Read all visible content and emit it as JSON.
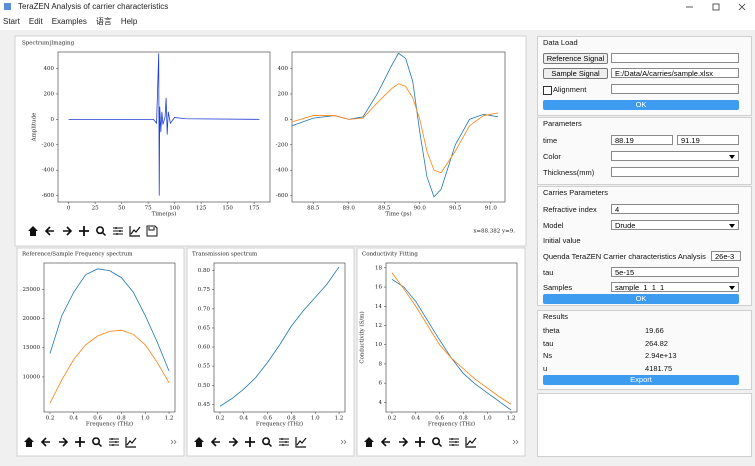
{
  "window": {
    "title": "TeraZEN Analysis of carrier characteristics"
  },
  "menu": [
    "Start",
    "Edit",
    "Examples",
    "语言",
    "Help"
  ],
  "spectrum": {
    "title": "Spectrum|Imaging",
    "coords": "x=88.382 y=9.",
    "time_plot": {
      "xlabel": "Time(ps)",
      "ylabel": "Amplitude",
      "xlim": [
        -10,
        190
      ],
      "ylim": [
        -650,
        530
      ],
      "xticks": [
        0,
        25,
        50,
        75,
        100,
        125,
        150,
        175
      ],
      "yticks": [
        -600,
        -400,
        -200,
        0,
        200,
        400
      ],
      "series": [
        {
          "color": "#1f3fd6",
          "x": [
            0,
            80,
            83,
            85,
            85.5,
            86,
            87,
            88,
            89,
            91,
            92,
            93,
            94,
            96,
            100,
            110,
            180
          ],
          "values": [
            0,
            0,
            -30,
            520,
            -600,
            100,
            -100,
            60,
            -40,
            20,
            170,
            -120,
            60,
            -30,
            15,
            5,
            0
          ]
        }
      ]
    },
    "zoom_plot": {
      "xlabel": "Time (ps)",
      "xlim": [
        88.2,
        91.2
      ],
      "ylim": [
        -650,
        530
      ],
      "xticks": [
        88.5,
        {
          "value": 89,
          "label": "89.0"
        },
        89.5,
        {
          "value": 90,
          "label": "90.0"
        },
        90.5,
        {
          "value": 91,
          "label": "91.0"
        }
      ],
      "yticks": [
        -600,
        -400,
        -200,
        0,
        200,
        400
      ],
      "series": [
        {
          "color": "#1f77b4",
          "x": [
            88.2,
            88.5,
            88.8,
            89.0,
            89.2,
            89.4,
            89.6,
            89.7,
            89.8,
            89.9,
            90.0,
            90.1,
            90.2,
            90.3,
            90.5,
            90.7,
            90.9,
            91.1
          ],
          "values": [
            -50,
            10,
            30,
            0,
            20,
            200,
            420,
            520,
            480,
            300,
            -100,
            -450,
            -610,
            -550,
            -200,
            0,
            40,
            20
          ]
        },
        {
          "color": "#ff7f0e",
          "x": [
            88.2,
            88.5,
            88.8,
            89.0,
            89.2,
            89.4,
            89.6,
            89.7,
            89.8,
            89.9,
            90.0,
            90.1,
            90.2,
            90.3,
            90.5,
            90.7,
            90.9,
            91.1
          ],
          "values": [
            -20,
            30,
            30,
            0,
            10,
            130,
            240,
            280,
            260,
            170,
            0,
            -250,
            -400,
            -420,
            -250,
            -50,
            30,
            50
          ]
        }
      ]
    }
  },
  "reference_sample": {
    "title": "Reference/Sample Frequency spectrum",
    "xlabel": "Frequency (THz)",
    "xlim": [
      0.15,
      1.25
    ],
    "ylim": [
      4000,
      29500
    ],
    "xticks": [
      0.2,
      0.4,
      0.6,
      0.8,
      {
        "value": 1,
        "label": "1.0"
      },
      1.2
    ],
    "yticks": [
      10000,
      15000,
      20000,
      25000
    ],
    "series": [
      {
        "color": "#1f77b4",
        "x": [
          0.2,
          0.3,
          0.4,
          0.5,
          0.6,
          0.7,
          0.8,
          0.9,
          1.0,
          1.1,
          1.2
        ],
        "values": [
          14000,
          20500,
          24500,
          27500,
          28500,
          28200,
          27000,
          24500,
          20500,
          16000,
          11000
        ]
      },
      {
        "color": "#ff7f0e",
        "x": [
          0.2,
          0.3,
          0.4,
          0.5,
          0.6,
          0.7,
          0.8,
          0.9,
          1.0,
          1.1,
          1.2
        ],
        "values": [
          5500,
          9500,
          13000,
          15500,
          17000,
          17800,
          18000,
          17300,
          15500,
          12500,
          9000
        ]
      }
    ]
  },
  "transmission": {
    "title": "Transmission spectrum",
    "xlabel": "Frequency (THz)",
    "xlim": [
      0.15,
      1.25
    ],
    "ylim": [
      0.43,
      0.82
    ],
    "xticks": [
      0.2,
      0.4,
      0.6,
      0.8,
      {
        "value": 1,
        "label": "1.0"
      },
      1.2
    ],
    "yticks": [
      0.45,
      {
        "value": 0.5,
        "label": "0.50"
      },
      0.55,
      {
        "value": 0.6,
        "label": "0.60"
      },
      0.65,
      {
        "value": 0.7,
        "label": "0.70"
      },
      0.75,
      {
        "value": 0.8,
        "label": "0.80"
      }
    ],
    "series": [
      {
        "color": "#1f77b4",
        "x": [
          0.2,
          0.3,
          0.4,
          0.5,
          0.6,
          0.7,
          0.8,
          0.9,
          1.0,
          1.1,
          1.2
        ],
        "values": [
          0.445,
          0.465,
          0.49,
          0.52,
          0.56,
          0.605,
          0.655,
          0.695,
          0.73,
          0.765,
          0.81
        ]
      }
    ]
  },
  "conductivity": {
    "title": "Conductivity Fitting",
    "xlabel": "Frequency (THz)",
    "ylabel": "Conductivity (S/m)",
    "xlim": [
      0.15,
      1.25
    ],
    "ylim": [
      3,
      18.5
    ],
    "xticks": [
      0.2,
      0.4,
      0.6,
      0.8,
      {
        "value": 1,
        "label": "1.0"
      },
      1.2
    ],
    "yticks": [
      4,
      6,
      8,
      10,
      12,
      14,
      16,
      18
    ],
    "series": [
      {
        "color": "#1f77b4",
        "x": [
          0.2,
          0.3,
          0.4,
          0.5,
          0.6,
          0.7,
          0.8,
          0.9,
          1.0,
          1.1,
          1.2
        ],
        "values": [
          16.8,
          16,
          14.5,
          12.5,
          10.5,
          8.6,
          7,
          5.9,
          5,
          4.1,
          3.2
        ]
      },
      {
        "color": "#ff7f0e",
        "x": [
          0.2,
          0.3,
          0.4,
          0.5,
          0.6,
          0.7,
          0.8,
          0.9,
          1.0,
          1.1,
          1.2
        ],
        "values": [
          17.5,
          15.8,
          14,
          12,
          10,
          8.6,
          7.5,
          6.4,
          5.5,
          4.6,
          3.8
        ]
      }
    ]
  },
  "data_load": {
    "title": "Data Load",
    "reference_button": "Reference Signal",
    "sample_button": "Sample Signal",
    "sample_path": "E:/Data/A/carries/sample.xlsx",
    "alignment": "Alignment",
    "ok": "OK"
  },
  "parameters": {
    "title": "Parameters",
    "time_label": "time",
    "time_start": "88.19",
    "time_end": "91.19",
    "color_label": "Color",
    "thickness_label": "Thickness(mm)"
  },
  "carries": {
    "title": "Carries Parameters",
    "refractive_label": "Refractive index",
    "refractive": "4",
    "model_label": "Model",
    "model": "Drude",
    "initial_label": "Initial value",
    "quenda_label": "Quenda TeraZEN Carrier characteristics Analysis",
    "quenda": "26e-3",
    "tau_label": "tau",
    "tau": "5e-15",
    "samples_label": "Samples",
    "samples": "sample_1_1_1",
    "ok": "OK"
  },
  "results": {
    "title": "Results",
    "rows": [
      [
        "theta",
        "19.66"
      ],
      [
        "tau",
        "264.82"
      ],
      [
        "Ns",
        "2.94e+13"
      ],
      [
        "u",
        "4181.75"
      ]
    ],
    "export": "Export"
  }
}
